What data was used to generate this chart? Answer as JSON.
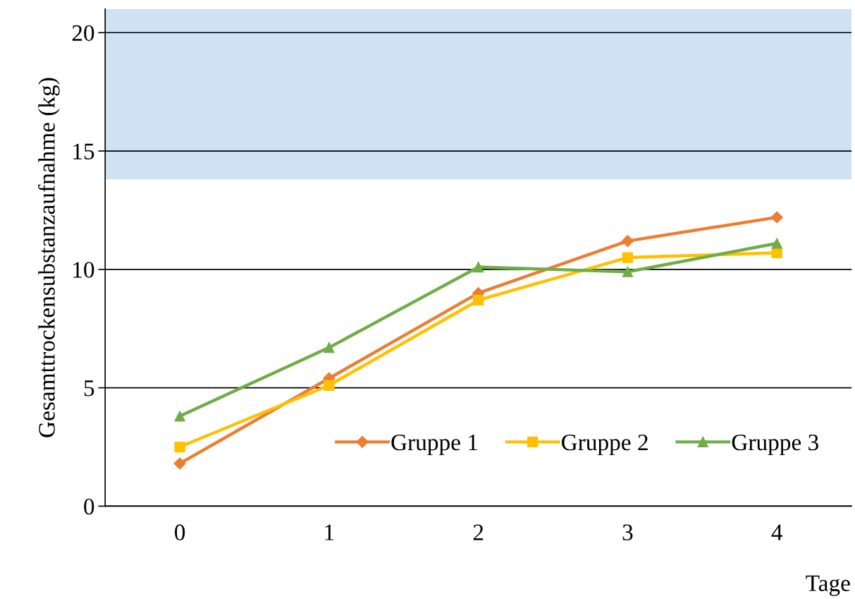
{
  "chart_data": {
    "type": "line",
    "xlabel": "Tage",
    "ylabel": "Gesamttrockensubstanzaufnahme (kg)",
    "categories": [
      "0",
      "1",
      "2",
      "3",
      "4"
    ],
    "series": [
      {
        "name": "Gruppe 1",
        "color": "#ed7d31",
        "marker": "diamond",
        "values": [
          1.8,
          5.4,
          9.0,
          11.2,
          12.2
        ]
      },
      {
        "name": "Gruppe 2",
        "color": "#ffc000",
        "marker": "square",
        "values": [
          2.5,
          5.1,
          8.7,
          10.5,
          10.7
        ]
      },
      {
        "name": "Gruppe 3",
        "color": "#70ad47",
        "marker": "triangle",
        "values": [
          3.8,
          6.7,
          10.1,
          9.9,
          11.1
        ]
      }
    ],
    "ylim": [
      0,
      21
    ],
    "yticks": [
      0,
      5,
      10,
      15,
      20
    ],
    "grid": "y",
    "legend": "bottom right",
    "bands": [
      {
        "axis": "y",
        "from": 13.8,
        "to": 21,
        "color": "#cfe2f3"
      }
    ]
  }
}
